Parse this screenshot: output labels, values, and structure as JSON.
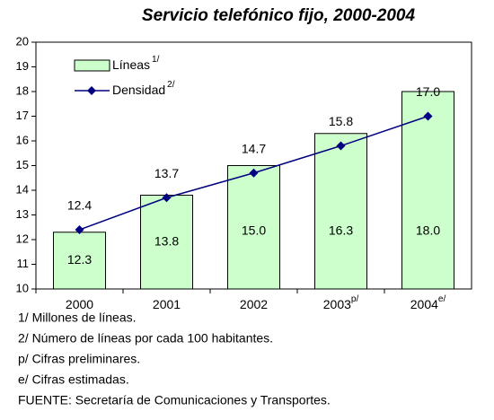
{
  "chart_data": {
    "type": "bar-line",
    "title": "Servicio telefónico fijo, 2000-2004",
    "categories": [
      "2000",
      "2001",
      "2002",
      "2003",
      "2004"
    ],
    "category_notes": [
      null,
      null,
      null,
      "p/",
      "e/"
    ],
    "series": [
      {
        "name": "Líneas",
        "note": "1/",
        "type": "bar",
        "color": "#ccffcc",
        "values": [
          12.3,
          13.8,
          15.0,
          16.3,
          18.0
        ],
        "value_labels": [
          "12.3",
          "13.8",
          "15.0",
          "16.3",
          "18.0"
        ]
      },
      {
        "name": "Densidad",
        "note": "2/",
        "type": "line",
        "color": "#000080",
        "values": [
          12.4,
          13.7,
          14.7,
          15.8,
          17.0
        ],
        "value_labels": [
          "12.4",
          "13.7",
          "14.7",
          "15.8",
          "17.0"
        ]
      }
    ],
    "ylim": [
      10,
      20
    ],
    "yticks": [
      10,
      11,
      12,
      13,
      14,
      15,
      16,
      17,
      18,
      19,
      20
    ],
    "legend": "top-left",
    "footnotes": [
      "1/ Millones de líneas.",
      "2/ Número de líneas por cada 100 habitantes.",
      "p/ Cifras preliminares.",
      "e/ Cifras estimadas.",
      "FUENTE: Secretaría de Comunicaciones y Transportes."
    ]
  }
}
